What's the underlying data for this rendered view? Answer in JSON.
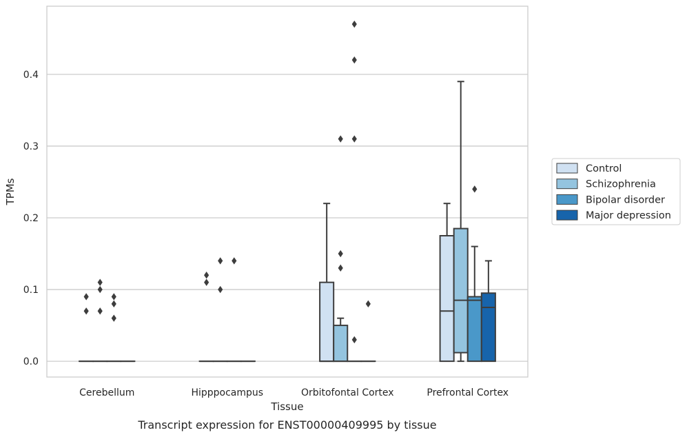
{
  "chart_data": {
    "type": "box",
    "xlabel": "Tissue",
    "ylabel": "TPMs",
    "caption": "Transcript expression for ENST00000409995 by tissue",
    "ylim": [
      -0.022,
      0.495
    ],
    "yticks": [
      0.0,
      0.1,
      0.2,
      0.3,
      0.4
    ],
    "ytick_labels": [
      "0.0",
      "0.1",
      "0.2",
      "0.3",
      "0.4"
    ],
    "grid": "horizontal",
    "legend_position": "right",
    "categories": [
      "Cerebellum",
      "Hipppocampus",
      "Orbitofontal Cortex",
      "Prefrontal Cortex"
    ],
    "series": [
      {
        "name": "Control",
        "color": "#d0e1f2",
        "boxes": [
          {
            "q1": 0,
            "median": 0,
            "q3": 0,
            "whisker_low": 0,
            "whisker_high": 0,
            "outliers": [
              0.07,
              0.09
            ]
          },
          {
            "q1": 0,
            "median": 0,
            "q3": 0,
            "whisker_low": 0,
            "whisker_high": 0,
            "outliers": [
              0.11,
              0.12
            ]
          },
          {
            "q1": 0,
            "median": 0,
            "q3": 0.11,
            "whisker_low": 0,
            "whisker_high": 0.22,
            "outliers": []
          },
          {
            "q1": 0,
            "median": 0.07,
            "q3": 0.175,
            "whisker_low": 0,
            "whisker_high": 0.22,
            "outliers": []
          }
        ]
      },
      {
        "name": "Schizophrenia",
        "color": "#94c4df",
        "boxes": [
          {
            "q1": 0,
            "median": 0,
            "q3": 0,
            "whisker_low": 0,
            "whisker_high": 0,
            "outliers": [
              0.07,
              0.1,
              0.11
            ]
          },
          {
            "q1": 0,
            "median": 0,
            "q3": 0,
            "whisker_low": 0,
            "whisker_high": 0,
            "outliers": [
              0.1,
              0.14
            ]
          },
          {
            "q1": 0,
            "median": 0,
            "q3": 0.05,
            "whisker_low": 0,
            "whisker_high": 0.06,
            "outliers": [
              0.13,
              0.15,
              0.31
            ]
          },
          {
            "q1": 0.012,
            "median": 0.085,
            "q3": 0.185,
            "whisker_low": 0,
            "whisker_high": 0.39,
            "outliers": []
          }
        ]
      },
      {
        "name": "Bipolar disorder",
        "color": "#4a98c9",
        "boxes": [
          {
            "q1": 0,
            "median": 0,
            "q3": 0,
            "whisker_low": 0,
            "whisker_high": 0,
            "outliers": [
              0.06,
              0.08,
              0.09
            ]
          },
          {
            "q1": 0,
            "median": 0,
            "q3": 0,
            "whisker_low": 0,
            "whisker_high": 0,
            "outliers": [
              0.14
            ]
          },
          {
            "q1": 0,
            "median": 0,
            "q3": 0,
            "whisker_low": 0,
            "whisker_high": 0,
            "outliers": [
              0.03,
              0.31,
              0.42,
              0.47
            ]
          },
          {
            "q1": 0,
            "median": 0.085,
            "q3": 0.09,
            "whisker_low": 0,
            "whisker_high": 0.16,
            "outliers": [
              0.24
            ]
          }
        ]
      },
      {
        "name": "Major depression",
        "color": "#1764ab",
        "boxes": [
          {
            "q1": 0,
            "median": 0,
            "q3": 0,
            "whisker_low": 0,
            "whisker_high": 0,
            "outliers": []
          },
          {
            "q1": 0,
            "median": 0,
            "q3": 0,
            "whisker_low": 0,
            "whisker_high": 0,
            "outliers": []
          },
          {
            "q1": 0,
            "median": 0,
            "q3": 0,
            "whisker_low": 0,
            "whisker_high": 0,
            "outliers": [
              0.08
            ]
          },
          {
            "q1": 0,
            "median": 0.075,
            "q3": 0.095,
            "whisker_low": 0,
            "whisker_high": 0.14,
            "outliers": []
          }
        ]
      }
    ]
  }
}
